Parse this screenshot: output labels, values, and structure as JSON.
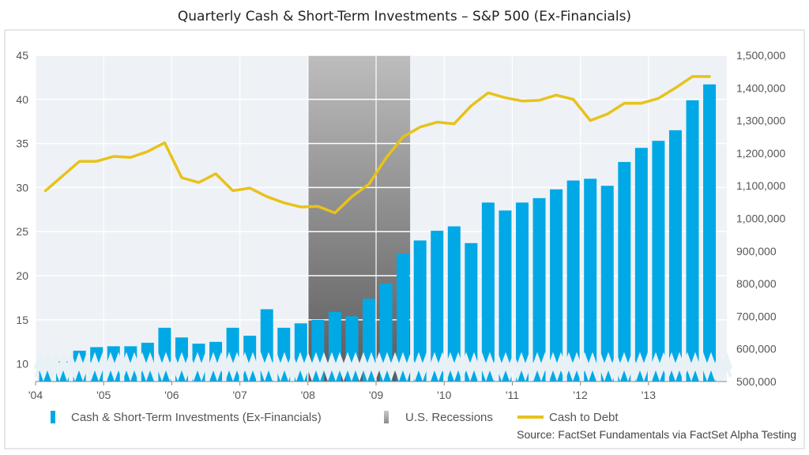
{
  "chart_data": {
    "type": "bar",
    "title": "Quarterly Cash & Short-Term Investments – S&P 500 (Ex-Financials)",
    "x_tick_labels": [
      "'04",
      "'05",
      "'06",
      "'07",
      "'08",
      "'09",
      "'10",
      "'11",
      "'12",
      "'13"
    ],
    "y_left": {
      "ylim": [
        8,
        45
      ],
      "ticks": [
        "45",
        "40",
        "35",
        "30",
        "25",
        "20",
        "15",
        "10"
      ]
    },
    "y_right": {
      "ylim": [
        500000,
        1500000
      ],
      "ticks": [
        "1,500,000",
        "1,400,000",
        "1,300,000",
        "1,200,000",
        "1,100,000",
        "1,000,000",
        "900,000",
        "800,000",
        "700,000",
        "600,000",
        "500,000"
      ]
    },
    "series": [
      {
        "name": "Cash & Short-Term Investments (Ex-Financials)",
        "type": "bar",
        "axis": "left",
        "color": "#00a9e6",
        "x": [
          2004.25,
          2004.5,
          2004.75,
          2005.0,
          2005.25,
          2005.5,
          2005.75,
          2006.0,
          2006.25,
          2006.5,
          2006.75,
          2007.0,
          2007.25,
          2007.5,
          2007.75,
          2008.0,
          2008.25,
          2008.5,
          2008.75,
          2009.0,
          2009.25,
          2009.5,
          2009.75,
          2010.0,
          2010.25,
          2010.5,
          2010.75,
          2011.0,
          2011.25,
          2011.5,
          2011.75,
          2012.0,
          2012.25,
          2012.5,
          2012.75,
          2013.0,
          2013.25,
          2013.5,
          2013.75,
          2014.0
        ],
        "values": [
          9.2,
          10.3,
          11.5,
          11.9,
          12.0,
          12.0,
          12.4,
          14.1,
          13.0,
          12.3,
          12.5,
          14.1,
          13.2,
          16.2,
          14.1,
          14.6,
          15.0,
          15.9,
          15.4,
          17.4,
          19.1,
          22.5,
          24.0,
          25.1,
          25.6,
          23.7,
          28.3,
          27.4,
          28.3,
          28.8,
          29.8,
          30.8,
          31.0,
          30.2,
          32.9,
          34.5,
          35.3,
          36.5,
          39.9,
          41.7
        ]
      },
      {
        "name": "Cash to Debt",
        "type": "line",
        "axis": "right",
        "color": "#e8c21a",
        "x": [
          2004.25,
          2004.75,
          2005.0,
          2005.25,
          2005.5,
          2005.75,
          2006.0,
          2006.25,
          2006.5,
          2006.75,
          2007.0,
          2007.25,
          2007.5,
          2007.75,
          2008.0,
          2008.25,
          2008.5,
          2008.75,
          2009.0,
          2009.25,
          2009.5,
          2009.75,
          2010.0,
          2010.25,
          2010.5,
          2010.75,
          2011.0,
          2011.25,
          2011.5,
          2011.75,
          2012.0,
          2012.25,
          2012.5,
          2012.75,
          2013.0,
          2013.25,
          2013.5,
          2013.75,
          2014.0
        ],
        "values": [
          1085000,
          1175000,
          1175000,
          1190000,
          1187000,
          1205000,
          1232000,
          1125000,
          1110000,
          1137000,
          1085000,
          1093000,
          1067000,
          1048000,
          1035000,
          1037000,
          1017000,
          1067000,
          1105000,
          1185000,
          1250000,
          1280000,
          1295000,
          1290000,
          1345000,
          1385000,
          1370000,
          1360000,
          1362000,
          1378000,
          1365000,
          1300000,
          1320000,
          1353000,
          1353000,
          1368000,
          1400000,
          1435000,
          1435000
        ]
      }
    ],
    "recession": {
      "name": "U.S. Recessions",
      "color": "#9a9a9a",
      "start": 2008.0,
      "end": 2009.5
    },
    "grid": true,
    "legend_position": "bottom"
  },
  "source_note": "Source: FactSet Fundamentals via FactSet Alpha Testing"
}
